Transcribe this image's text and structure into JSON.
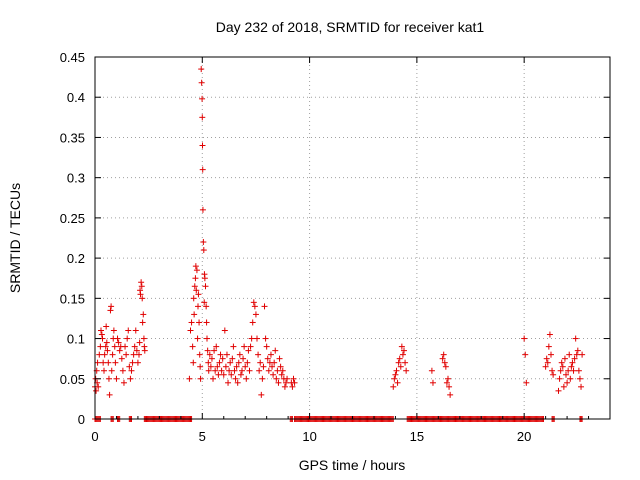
{
  "chart_data": {
    "type": "scatter",
    "title": "Day 232 of 2018, SRMTID for receiver kat1",
    "xlabel": "GPS time / hours",
    "ylabel": "SRMTID / TECUs",
    "xlim": [
      0,
      24
    ],
    "ylim": [
      0,
      0.45
    ],
    "xticks": [
      "0",
      "5",
      "10",
      "15",
      "20"
    ],
    "yticks": [
      "0",
      "0.05",
      "0.1",
      "0.15",
      "0.2",
      "0.25",
      "0.3",
      "0.35",
      "0.4",
      "0.45"
    ],
    "grid": true,
    "marker": "plus",
    "color": "#e00000",
    "series": [
      {
        "points": [
          [
            0.0,
            0.04
          ],
          [
            0.03,
            0.05
          ],
          [
            0.05,
            0.035
          ],
          [
            0.08,
            0.06
          ],
          [
            0.1,
            0.045
          ],
          [
            0.12,
            0.07
          ],
          [
            0.15,
            0.04
          ],
          [
            0.2,
            0.08
          ],
          [
            0.25,
            0.09
          ],
          [
            0.28,
            0.11
          ],
          [
            0.32,
            0.105
          ],
          [
            0.35,
            0.1
          ],
          [
            0.38,
            0.07
          ],
          [
            0.42,
            0.06
          ],
          [
            0.45,
            0.08
          ],
          [
            0.5,
            0.09
          ],
          [
            0.52,
            0.115
          ],
          [
            0.55,
            0.095
          ],
          [
            0.58,
            0.085
          ],
          [
            0.62,
            0.07
          ],
          [
            0.65,
            0.05
          ],
          [
            0.68,
            0.03
          ],
          [
            0.72,
            0.135
          ],
          [
            0.75,
            0.14
          ],
          [
            0.78,
            0.06
          ],
          [
            0.82,
            0.08
          ],
          [
            0.85,
            0.1
          ],
          [
            0.88,
            0.11
          ],
          [
            0.92,
            0.09
          ],
          [
            0.95,
            0.07
          ],
          [
            1.0,
            0.05
          ],
          [
            1.05,
            0.1
          ],
          [
            1.1,
            0.095
          ],
          [
            1.15,
            0.085
          ],
          [
            1.2,
            0.09
          ],
          [
            1.25,
            0.075
          ],
          [
            1.3,
            0.06
          ],
          [
            1.35,
            0.045
          ],
          [
            1.4,
            0.09
          ],
          [
            1.45,
            0.08
          ],
          [
            1.5,
            0.1
          ],
          [
            1.55,
            0.11
          ],
          [
            1.6,
            0.065
          ],
          [
            1.65,
            0.05
          ],
          [
            1.7,
            0.06
          ],
          [
            1.75,
            0.07
          ],
          [
            1.8,
            0.08
          ],
          [
            1.85,
            0.09
          ],
          [
            1.9,
            0.11
          ],
          [
            1.95,
            0.085
          ],
          [
            2.0,
            0.07
          ],
          [
            2.05,
            0.08
          ],
          [
            2.08,
            0.095
          ],
          [
            2.1,
            0.16
          ],
          [
            2.12,
            0.155
          ],
          [
            2.15,
            0.17
          ],
          [
            2.18,
            0.165
          ],
          [
            2.2,
            0.15
          ],
          [
            2.22,
            0.12
          ],
          [
            2.25,
            0.13
          ],
          [
            2.28,
            0.1
          ],
          [
            2.3,
            0.09
          ],
          [
            2.32,
            0.085
          ],
          [
            4.4,
            0.05
          ],
          [
            4.45,
            0.11
          ],
          [
            4.5,
            0.12
          ],
          [
            4.55,
            0.09
          ],
          [
            4.58,
            0.07
          ],
          [
            4.6,
            0.15
          ],
          [
            4.62,
            0.13
          ],
          [
            4.65,
            0.165
          ],
          [
            4.68,
            0.175
          ],
          [
            4.7,
            0.19
          ],
          [
            4.72,
            0.16
          ],
          [
            4.75,
            0.185
          ],
          [
            4.78,
            0.1
          ],
          [
            4.8,
            0.14
          ],
          [
            4.82,
            0.155
          ],
          [
            4.85,
            0.12
          ],
          [
            4.88,
            0.08
          ],
          [
            4.9,
            0.065
          ],
          [
            4.92,
            0.05
          ],
          [
            4.95,
            0.435
          ],
          [
            4.97,
            0.418
          ],
          [
            4.99,
            0.398
          ],
          [
            5.0,
            0.375
          ],
          [
            5.01,
            0.34
          ],
          [
            5.02,
            0.31
          ],
          [
            5.03,
            0.26
          ],
          [
            5.05,
            0.22
          ],
          [
            5.07,
            0.21
          ],
          [
            5.09,
            0.145
          ],
          [
            5.1,
            0.18
          ],
          [
            5.12,
            0.175
          ],
          [
            5.15,
            0.165
          ],
          [
            5.18,
            0.14
          ],
          [
            5.2,
            0.12
          ],
          [
            5.22,
            0.1
          ],
          [
            5.25,
            0.085
          ],
          [
            5.28,
            0.07
          ],
          [
            5.3,
            0.06
          ],
          [
            5.35,
            0.08
          ],
          [
            5.4,
            0.065
          ],
          [
            5.45,
            0.075
          ],
          [
            5.5,
            0.05
          ],
          [
            5.55,
            0.085
          ],
          [
            5.6,
            0.06
          ],
          [
            5.65,
            0.09
          ],
          [
            5.7,
            0.065
          ],
          [
            5.75,
            0.055
          ],
          [
            5.8,
            0.07
          ],
          [
            5.85,
            0.08
          ],
          [
            5.9,
            0.06
          ],
          [
            5.95,
            0.075
          ],
          [
            6.0,
            0.055
          ],
          [
            6.05,
            0.11
          ],
          [
            6.1,
            0.065
          ],
          [
            6.15,
            0.08
          ],
          [
            6.2,
            0.045
          ],
          [
            6.25,
            0.06
          ],
          [
            6.3,
            0.07
          ],
          [
            6.35,
            0.055
          ],
          [
            6.4,
            0.075
          ],
          [
            6.45,
            0.09
          ],
          [
            6.5,
            0.06
          ],
          [
            6.55,
            0.05
          ],
          [
            6.6,
            0.065
          ],
          [
            6.65,
            0.045
          ],
          [
            6.7,
            0.07
          ],
          [
            6.75,
            0.08
          ],
          [
            6.8,
            0.055
          ],
          [
            6.85,
            0.06
          ],
          [
            6.9,
            0.075
          ],
          [
            6.95,
            0.09
          ],
          [
            7.0,
            0.065
          ],
          [
            7.05,
            0.05
          ],
          [
            7.1,
            0.07
          ],
          [
            7.15,
            0.085
          ],
          [
            7.2,
            0.06
          ],
          [
            7.25,
            0.09
          ],
          [
            7.3,
            0.1
          ],
          [
            7.35,
            0.12
          ],
          [
            7.4,
            0.145
          ],
          [
            7.45,
            0.14
          ],
          [
            7.5,
            0.13
          ],
          [
            7.55,
            0.1
          ],
          [
            7.6,
            0.08
          ],
          [
            7.65,
            0.06
          ],
          [
            7.7,
            0.07
          ],
          [
            7.75,
            0.03
          ],
          [
            7.8,
            0.05
          ],
          [
            7.85,
            0.065
          ],
          [
            7.9,
            0.14
          ],
          [
            7.95,
            0.1
          ],
          [
            8.0,
            0.09
          ],
          [
            8.05,
            0.075
          ],
          [
            8.1,
            0.06
          ],
          [
            8.15,
            0.07
          ],
          [
            8.2,
            0.08
          ],
          [
            8.25,
            0.065
          ],
          [
            8.3,
            0.055
          ],
          [
            8.35,
            0.07
          ],
          [
            8.4,
            0.085
          ],
          [
            8.45,
            0.05
          ],
          [
            8.5,
            0.06
          ],
          [
            8.55,
            0.045
          ],
          [
            8.6,
            0.075
          ],
          [
            8.65,
            0.065
          ],
          [
            8.7,
            0.055
          ],
          [
            8.75,
            0.06
          ],
          [
            8.8,
            0.05
          ],
          [
            8.85,
            0.04
          ],
          [
            8.9,
            0.045
          ],
          [
            8.95,
            0.05
          ],
          [
            9.15,
            0.045
          ],
          [
            9.2,
            0.04
          ],
          [
            9.25,
            0.05
          ],
          [
            9.3,
            0.045
          ],
          [
            13.9,
            0.04
          ],
          [
            13.95,
            0.05
          ],
          [
            14.0,
            0.055
          ],
          [
            14.05,
            0.06
          ],
          [
            14.1,
            0.045
          ],
          [
            14.15,
            0.07
          ],
          [
            14.2,
            0.075
          ],
          [
            14.25,
            0.065
          ],
          [
            14.3,
            0.09
          ],
          [
            14.35,
            0.08
          ],
          [
            14.4,
            0.085
          ],
          [
            14.45,
            0.07
          ],
          [
            14.5,
            0.06
          ],
          [
            15.7,
            0.06
          ],
          [
            15.75,
            0.045
          ],
          [
            16.2,
            0.075
          ],
          [
            16.25,
            0.08
          ],
          [
            16.3,
            0.07
          ],
          [
            16.35,
            0.065
          ],
          [
            16.4,
            0.045
          ],
          [
            16.45,
            0.05
          ],
          [
            16.5,
            0.04
          ],
          [
            16.55,
            0.03
          ],
          [
            20.0,
            0.1
          ],
          [
            20.05,
            0.08
          ],
          [
            20.1,
            0.045
          ],
          [
            21.0,
            0.065
          ],
          [
            21.05,
            0.075
          ],
          [
            21.1,
            0.07
          ],
          [
            21.15,
            0.09
          ],
          [
            21.2,
            0.105
          ],
          [
            21.25,
            0.08
          ],
          [
            21.3,
            0.06
          ],
          [
            21.35,
            0.055
          ],
          [
            21.6,
            0.035
          ],
          [
            21.65,
            0.05
          ],
          [
            21.7,
            0.06
          ],
          [
            21.75,
            0.07
          ],
          [
            21.8,
            0.065
          ],
          [
            21.85,
            0.04
          ],
          [
            21.9,
            0.075
          ],
          [
            21.95,
            0.055
          ],
          [
            22.0,
            0.045
          ],
          [
            22.05,
            0.06
          ],
          [
            22.1,
            0.08
          ],
          [
            22.15,
            0.05
          ],
          [
            22.2,
            0.065
          ],
          [
            22.25,
            0.07
          ],
          [
            22.3,
            0.06
          ],
          [
            22.35,
            0.075
          ],
          [
            22.4,
            0.1
          ],
          [
            22.45,
            0.08
          ],
          [
            22.5,
            0.085
          ],
          [
            22.55,
            0.06
          ],
          [
            22.6,
            0.05
          ],
          [
            22.65,
            0.04
          ],
          [
            22.7,
            0.08
          ]
        ],
        "zero_ranges": [
          [
            0.0,
            0.25
          ],
          [
            0.75,
            0.85
          ],
          [
            1.05,
            1.15
          ],
          [
            1.6,
            1.7
          ],
          [
            2.3,
            4.5
          ],
          [
            9.1,
            9.2
          ],
          [
            9.3,
            13.9
          ],
          [
            14.55,
            20.9
          ],
          [
            21.3,
            21.4
          ],
          [
            22.6,
            22.7
          ]
        ]
      }
    ]
  }
}
